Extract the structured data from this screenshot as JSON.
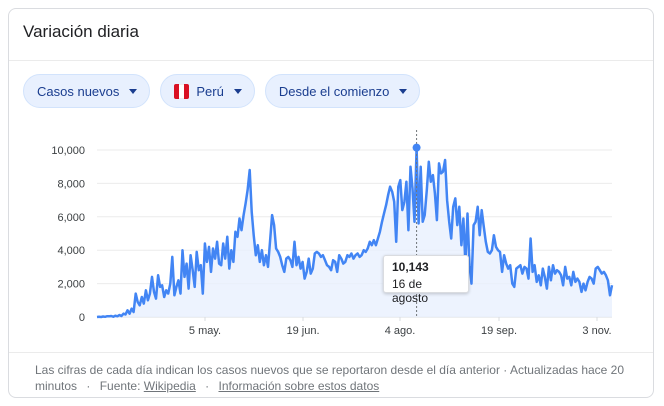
{
  "card": {
    "title": "Variación diaria"
  },
  "filters": [
    {
      "label": "Casos nuevos"
    },
    {
      "label": "Perú",
      "flag": [
        "#d91023",
        "#ffffff",
        "#d91023"
      ]
    },
    {
      "label": "Desde el comienzo"
    }
  ],
  "tooltip": {
    "value": "10,143",
    "date": "16 de agosto"
  },
  "footer": {
    "text": "Las cifras de cada día indican los casos nuevos que se reportaron desde el día anterior · Actualizadas hace 20 minutos",
    "source_label": "Fuente:",
    "source_link": "Wikipedia",
    "info_link": "Información sobre estos datos"
  },
  "chart_data": {
    "type": "area",
    "title": "",
    "xlabel": "",
    "ylabel": "",
    "ylim": [
      0,
      10000
    ],
    "y_ticks": [
      "10,000",
      "8,000",
      "6,000",
      "4,000",
      "2,000",
      "0"
    ],
    "x_ticks": [
      "5 may.",
      "19 jun.",
      "4 ago.",
      "19 sep.",
      "3 nov."
    ],
    "grid": true,
    "colors": {
      "line": "#4285f4",
      "fill": "#e8f0fe"
    },
    "highlight": {
      "x": "16 de agosto",
      "y": 10143
    },
    "x_range": [
      "6 mar.",
      "9 nov."
    ],
    "values": [
      0,
      10,
      0,
      30,
      10,
      50,
      40,
      60,
      20,
      80,
      40,
      120,
      60,
      200,
      150,
      400,
      200,
      500,
      300,
      1400,
      900,
      700,
      1200,
      800,
      1600,
      1000,
      1400,
      2400,
      1500,
      1100,
      2500,
      1800,
      1900,
      1200,
      1600,
      1400,
      2000,
      3600,
      1300,
      1800,
      2200,
      1400,
      4000,
      2400,
      3200,
      1700,
      3700,
      2800,
      1800,
      3900,
      2800,
      3100,
      1400,
      4400,
      3300,
      4200,
      2700,
      4100,
      3500,
      4500,
      3200,
      3100,
      4400,
      3500,
      4800,
      2900,
      4000,
      3300,
      5100,
      4800,
      5900,
      5200,
      6100,
      6800,
      7600,
      8800,
      6300,
      4900,
      3700,
      4300,
      3300,
      4000,
      3100,
      3700,
      3000,
      4500,
      6100,
      5500,
      4100,
      3900,
      3600,
      3100,
      2700,
      3500,
      3600,
      3400,
      3000,
      4500,
      3100,
      3600,
      2900,
      3300,
      2300,
      2700,
      3500,
      2600,
      2900,
      3800,
      3900,
      3800,
      3600,
      3700,
      3400,
      3100,
      3000,
      2800,
      3400,
      3300,
      2700,
      3700,
      3500,
      3200,
      3300,
      3700,
      3600,
      3800,
      3500,
      3700,
      3800,
      3600,
      3700,
      4000,
      3900,
      4100,
      4500,
      4300,
      4600,
      4300,
      4700,
      5100,
      5700,
      6200,
      6700,
      7300,
      7800,
      7500,
      6900,
      4500,
      7800,
      8200,
      6400,
      6900,
      8100,
      5200,
      9000,
      7700,
      5700,
      10143,
      5600,
      9000,
      5700,
      6100,
      7600,
      9300,
      8100,
      8500,
      7400,
      5800,
      9200,
      8600,
      8700,
      9400,
      7000,
      5700,
      4700,
      6600,
      7100,
      5500,
      6600,
      4300,
      5900,
      3200,
      6200,
      3100,
      2000,
      5500,
      5700,
      6600,
      4900,
      6400,
      5400,
      4500,
      3900,
      3800,
      4000,
      4900,
      4200,
      4000,
      3900,
      2700,
      3700,
      3200,
      2900,
      3100,
      2000,
      1800,
      2900,
      3000,
      3100,
      2600,
      3000,
      2900,
      2300,
      4700,
      2700,
      3100,
      2100,
      2500,
      1900,
      2900,
      2400,
      1700,
      3000,
      2200,
      3100,
      2600,
      2800,
      2700,
      2500,
      1900,
      3000,
      2300,
      2400,
      1900,
      2700,
      2100,
      2300,
      2100,
      1500,
      2000,
      1600,
      2100,
      2400,
      2300,
      2000,
      2900,
      3000,
      2800,
      2600,
      2700,
      2500,
      2200,
      1300,
      1900
    ]
  }
}
